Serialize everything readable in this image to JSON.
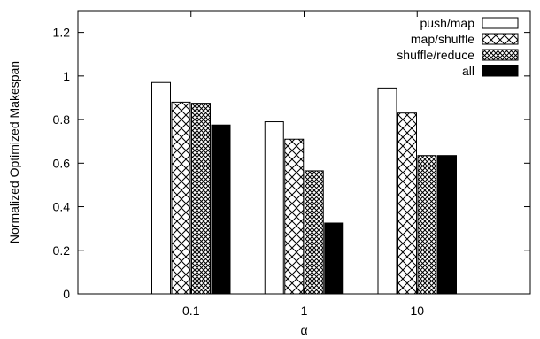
{
  "chart_data": {
    "type": "bar",
    "xlabel": "α",
    "ylabel": "Normalized Optimized Makespan",
    "categories": [
      "0.1",
      "1",
      "10"
    ],
    "ylim": [
      0,
      1.3
    ],
    "yticks": [
      0,
      0.2,
      0.4,
      0.6,
      0.8,
      1,
      1.2
    ],
    "ytick_labels": [
      "0",
      "0.2",
      "0.4",
      "0.6",
      "0.8",
      "1",
      "1.2"
    ],
    "grid": false,
    "legend_position": "top-right",
    "series": [
      {
        "name": "push/map",
        "values": [
          0.97,
          0.79,
          0.945
        ],
        "fill": "white"
      },
      {
        "name": "map/shuffle",
        "values": [
          0.88,
          0.71,
          0.83
        ],
        "fill": "cross"
      },
      {
        "name": "shuffle/reduce",
        "values": [
          0.875,
          0.565,
          0.635
        ],
        "fill": "dense-cross"
      },
      {
        "name": "all",
        "values": [
          0.775,
          0.325,
          0.635
        ],
        "fill": "black"
      }
    ]
  }
}
